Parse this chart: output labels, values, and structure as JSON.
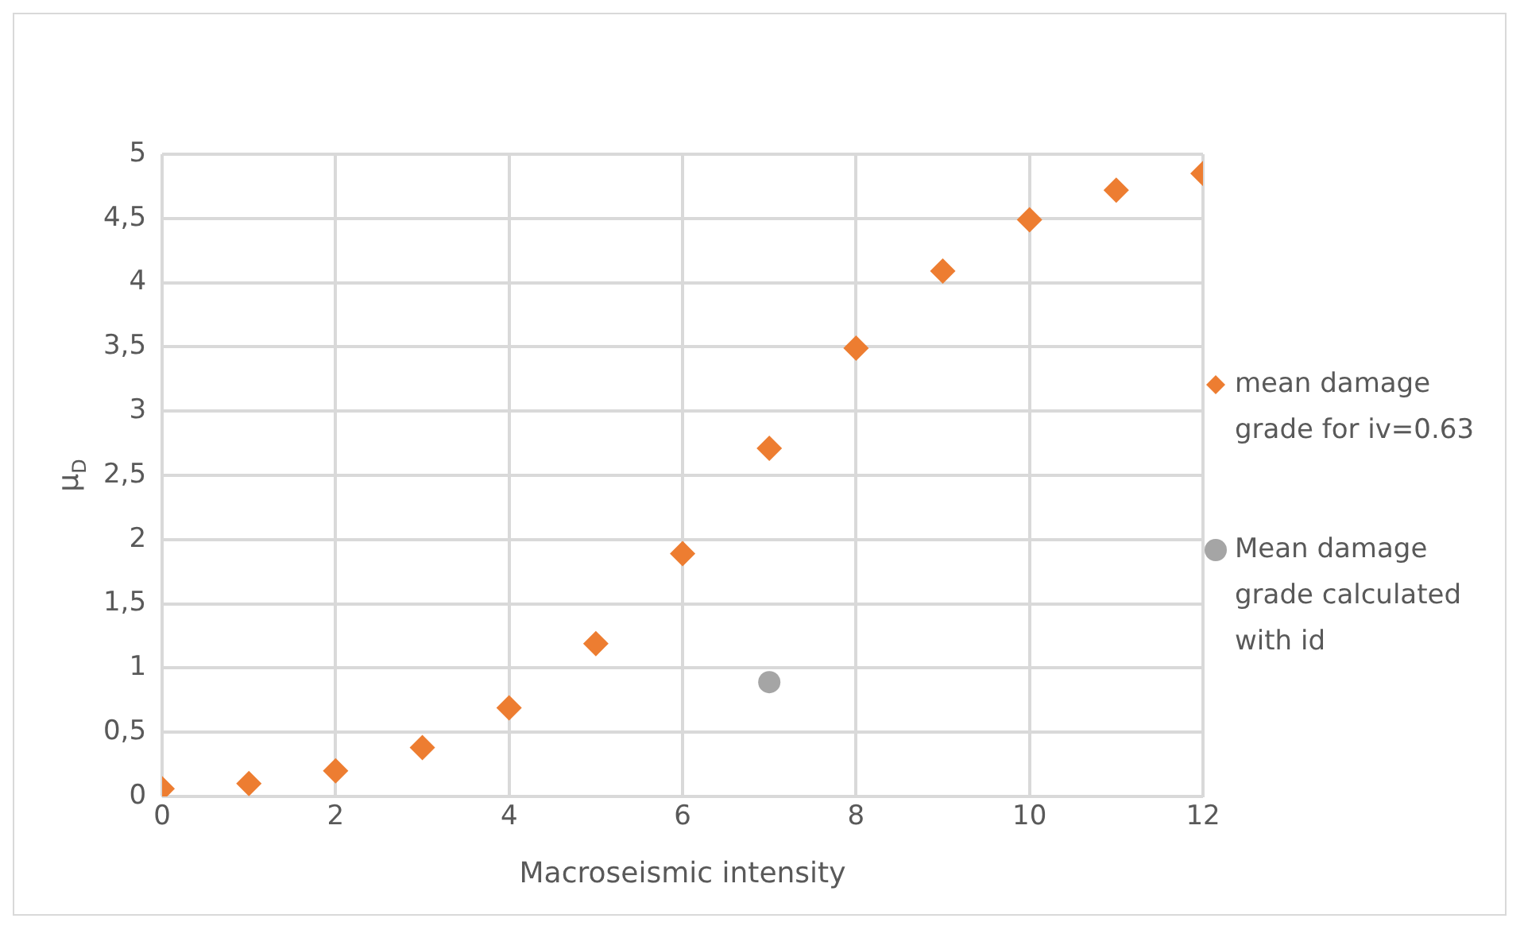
{
  "chart_data": {
    "type": "scatter",
    "xlabel": "Macroseismic intensity",
    "ylabel": "μ$_{D}$",
    "xlim": [
      0,
      12
    ],
    "xticks": [
      0,
      2,
      4,
      6,
      8,
      10,
      12
    ],
    "ylim": [
      0,
      5
    ],
    "yticks": [
      0,
      {
        "value": 0.5,
        "label": "0,5"
      },
      1,
      {
        "value": 1.5,
        "label": "1,5"
      },
      2,
      {
        "value": 2.5,
        "label": "2,5"
      },
      3,
      {
        "value": 3.5,
        "label": "3,5"
      },
      4,
      {
        "value": 4.5,
        "label": "4,5"
      },
      5
    ],
    "grid": true,
    "legend": "right",
    "series": [
      {
        "name": "mean damage grade for iv=0.63",
        "color": "#ed7d31",
        "marker": "diamond",
        "x": [
          0,
          1,
          2,
          3,
          4,
          5,
          6,
          7,
          8,
          9,
          10,
          11,
          12
        ],
        "values": [
          0.06,
          0.1,
          0.2,
          0.38,
          0.69,
          1.19,
          1.89,
          2.71,
          3.49,
          4.09,
          4.49,
          4.72,
          4.85
        ]
      },
      {
        "name": "Mean damage grade calculated with id",
        "color": "#a5a5a5",
        "marker": "circle",
        "x": [
          7
        ],
        "values": [
          0.89
        ]
      }
    ]
  }
}
